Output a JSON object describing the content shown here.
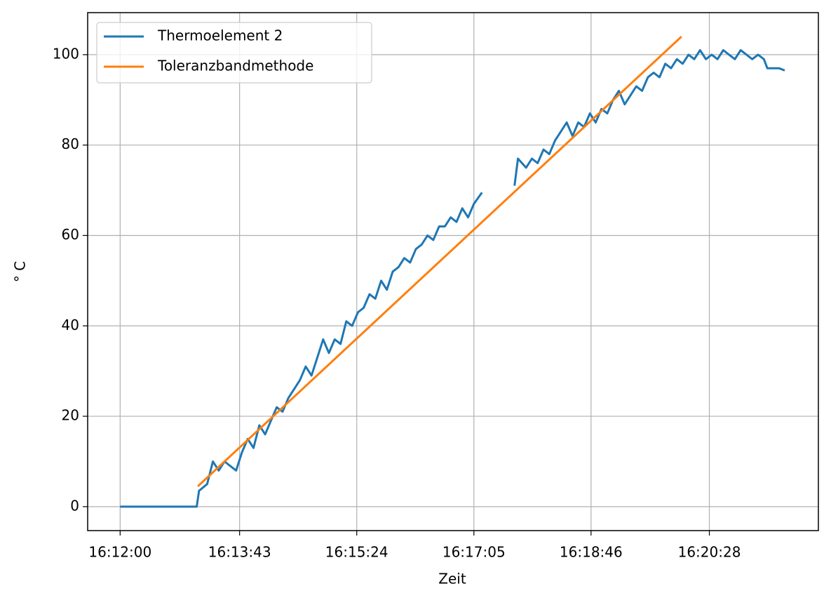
{
  "chart_data": {
    "type": "line",
    "xlabel": "Zeit",
    "ylabel": "° C",
    "xlim": [
      "16:11:32",
      "16:22:02"
    ],
    "xticks": [
      "16:12:00",
      "16:13:43",
      "16:15:24",
      "16:17:05",
      "16:18:46",
      "16:20:28"
    ],
    "ylim": [
      -5.3,
      109.3
    ],
    "yticks": [
      0,
      20,
      40,
      60,
      80,
      100
    ],
    "grid": true,
    "legend": "upper left",
    "series": [
      {
        "name": "Thermoelement 2",
        "color": "#1f77b4",
        "x": [
          "16:12:00",
          "16:12:10",
          "16:12:20",
          "16:12:30",
          "16:12:40",
          "16:12:50",
          "16:13:00",
          "16:13:06",
          "16:13:08",
          "16:13:15",
          "16:13:20",
          "16:13:25",
          "16:13:30",
          "16:13:35",
          "16:13:40",
          "16:13:45",
          "16:13:50",
          "16:13:55",
          "16:14:00",
          "16:14:05",
          "16:14:10",
          "16:14:15",
          "16:14:20",
          "16:14:25",
          "16:14:30",
          "16:14:35",
          "16:14:40",
          "16:14:45",
          "16:14:50",
          "16:14:55",
          "16:15:00",
          "16:15:05",
          "16:15:10",
          "16:15:15",
          "16:15:20",
          "16:15:25",
          "16:15:30",
          "16:15:35",
          "16:15:40",
          "16:15:45",
          "16:15:50",
          "16:15:55",
          "16:16:00",
          "16:16:05",
          "16:16:10",
          "16:16:15",
          "16:16:20",
          "16:16:25",
          "16:16:30",
          "16:16:35",
          "16:16:40",
          "16:16:45",
          "16:16:50",
          "16:16:55",
          "16:17:00",
          "16:17:05",
          "16:17:12",
          "16:17:25",
          "16:17:40",
          "16:17:43",
          "16:17:50",
          "16:17:55",
          "16:18:00",
          "16:18:05",
          "16:18:10",
          "16:18:15",
          "16:18:20",
          "16:18:25",
          "16:18:30",
          "16:18:35",
          "16:18:40",
          "16:18:45",
          "16:18:50",
          "16:18:55",
          "16:19:00",
          "16:19:05",
          "16:19:10",
          "16:19:15",
          "16:19:20",
          "16:19:25",
          "16:19:30",
          "16:19:35",
          "16:19:40",
          "16:19:45",
          "16:19:50",
          "16:19:55",
          "16:20:00",
          "16:20:05",
          "16:20:10",
          "16:20:15",
          "16:20:20",
          "16:20:25",
          "16:20:30",
          "16:20:35",
          "16:20:40",
          "16:20:45",
          "16:20:50",
          "16:20:55",
          "16:21:00",
          "16:21:05",
          "16:21:10",
          "16:21:15",
          "16:21:18",
          "16:21:28",
          "16:21:33"
        ],
        "values": [
          0,
          0,
          0,
          0,
          0,
          0,
          0,
          0,
          3.5,
          5,
          10,
          8,
          10,
          9,
          8,
          12,
          15,
          13,
          18,
          16,
          19,
          22,
          21,
          24,
          26,
          28,
          31,
          29,
          33,
          37,
          34,
          37,
          36,
          41,
          40,
          43,
          44,
          47,
          46,
          50,
          48,
          52,
          53,
          55,
          54,
          57,
          58,
          60,
          59,
          62,
          62,
          64,
          63,
          66,
          64,
          67,
          69.5,
          null,
          71,
          77,
          75,
          77,
          76,
          79,
          78,
          81,
          83,
          85,
          82,
          85,
          84,
          87,
          85,
          88,
          87,
          90,
          92,
          89,
          91,
          93,
          92,
          95,
          96,
          95,
          98,
          97,
          99,
          98,
          100,
          99,
          101,
          99,
          100,
          99,
          101,
          100,
          99,
          101,
          100,
          99,
          100,
          99,
          97,
          97,
          96.5
        ]
      },
      {
        "name": "Toleranzbandmethode",
        "color": "#ff7f0e",
        "x": [
          "16:13:07",
          "16:20:04"
        ],
        "values": [
          4.5,
          104
        ]
      }
    ]
  }
}
